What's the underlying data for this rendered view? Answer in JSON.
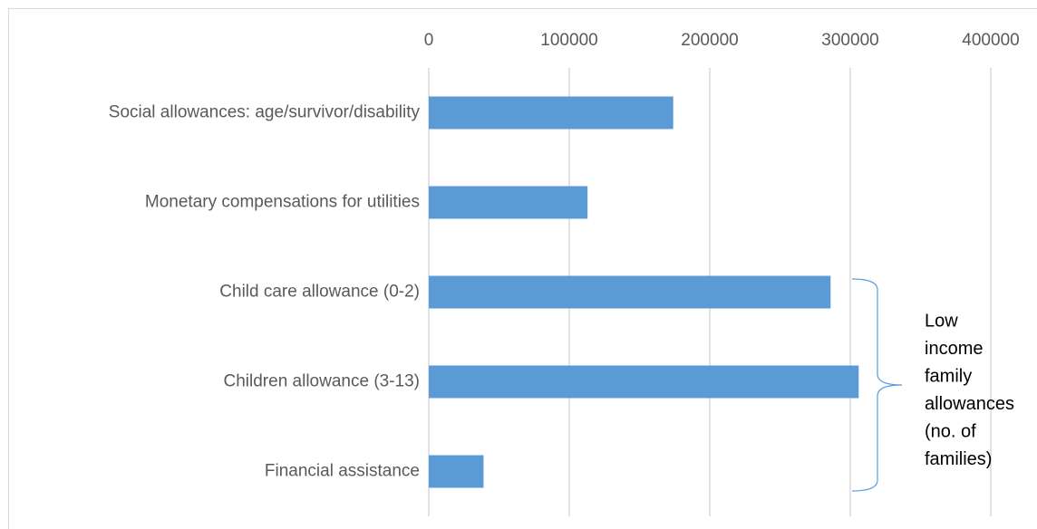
{
  "chart_data": {
    "type": "bar",
    "orientation": "horizontal",
    "categories": [
      "Social allowances: age/survivor/disability",
      "Monetary compensations for utilities",
      "Child care allowance (0-2)",
      "Children allowance (3-13)",
      "Financial assistance"
    ],
    "values": [
      174000,
      113000,
      286000,
      306000,
      39000
    ],
    "color": "#5b9bd5",
    "xlim": [
      0,
      400000
    ],
    "xticks": [
      0,
      100000,
      200000,
      300000,
      400000
    ],
    "grid": true,
    "annotation": [
      "Low",
      "income",
      "family",
      "allowances",
      "(no. of",
      "families)"
    ]
  }
}
